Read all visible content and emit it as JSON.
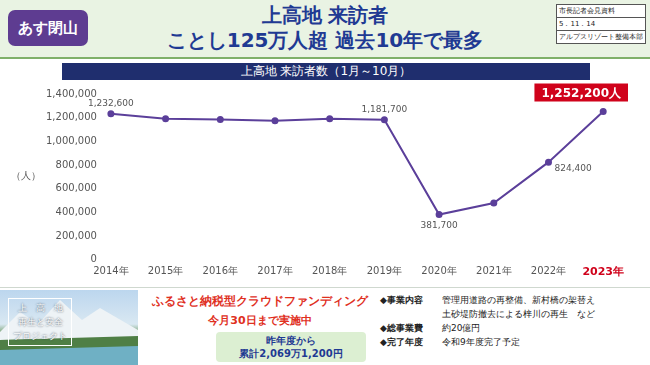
{
  "header": {
    "badge": "あす閉山",
    "title_lines": [
      "上高地 来訪者",
      "ことし125万人超 過去10年で最多"
    ],
    "doc_info": [
      "市長記者会見資料",
      "5．11．14",
      "アルプスリゾート整備本部"
    ]
  },
  "chart_data": {
    "type": "line",
    "title": "上高地 来訪者数（1月～10月）",
    "y_label": "（人）",
    "categories": [
      "2014年",
      "2015年",
      "2016年",
      "2017年",
      "2018年",
      "2019年",
      "2020年",
      "2021年",
      "2022年",
      "2023年"
    ],
    "values": [
      1232600,
      1190000,
      1185000,
      1175000,
      1190000,
      1181700,
      381700,
      480000,
      824400,
      1252200
    ],
    "value_labels": [
      "1,232,600",
      null,
      null,
      null,
      null,
      "1,181,700",
      "381,700",
      null,
      "824,400",
      "1,252,200人"
    ],
    "color": "#5b3f9a",
    "marker": "circle",
    "line_style": "solid",
    "data_labels": true,
    "grid": false,
    "ylim": [
      0,
      1400000
    ],
    "yticks": [
      0,
      {
        "value": 200000,
        "label": "200,000"
      },
      {
        "value": 400000,
        "label": "400,000"
      },
      {
        "value": 600000,
        "label": "600,000"
      },
      {
        "value": 800000,
        "label": "800,000"
      },
      {
        "value": 1000000,
        "label": "1,000,000"
      },
      {
        "value": 1200000,
        "label": "1,200,000"
      },
      {
        "value": 1400000,
        "label": "1,400,000"
      }
    ]
  },
  "footer": {
    "photo_text": [
      "上　高　地",
      "再生と安全",
      "プロジェクト"
    ],
    "cf_title": "ふるさと納税型クラウドファンディング",
    "cf_period": "今月30日まで実施中",
    "cf_total": [
      "昨年度から",
      "累計2,069万1,200円"
    ],
    "details": [
      {
        "label": "◆事業内容",
        "text": [
          "管理用道路の再整備、新村橋の架替え",
          "土砂堤防撤去による梓川の再生　など"
        ]
      },
      {
        "label": "◆総事業費",
        "text": [
          "約20億円"
        ]
      },
      {
        "label": "◆完了年度",
        "text": [
          "令和9年度完了予定"
        ]
      }
    ]
  }
}
